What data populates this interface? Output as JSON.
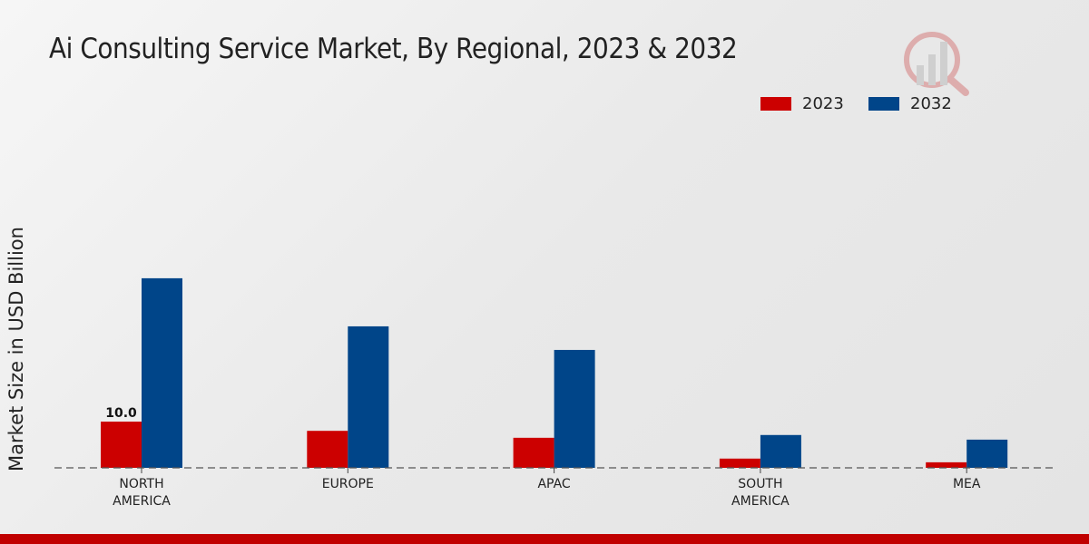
{
  "chart_data": {
    "type": "bar",
    "title": "Ai Consulting Service Market, By Regional, 2023 & 2032",
    "ylabel": "Market Size in USD Billion",
    "xlabel": "",
    "categories": [
      "NORTH AMERICA",
      "EUROPE",
      "APAC",
      "SOUTH AMERICA",
      "MEA"
    ],
    "series": [
      {
        "name": "2023",
        "color": "#cc0000",
        "values": [
          10.0,
          8.0,
          6.5,
          2.0,
          1.2
        ]
      },
      {
        "name": "2032",
        "color": "#004589",
        "values": [
          41.0,
          30.6,
          25.5,
          7.1,
          6.1
        ]
      }
    ],
    "data_labels": [
      {
        "series": "2023",
        "category": "NORTH AMERICA",
        "text": "10.0"
      }
    ],
    "legend_position": "top-right",
    "grid": false
  }
}
